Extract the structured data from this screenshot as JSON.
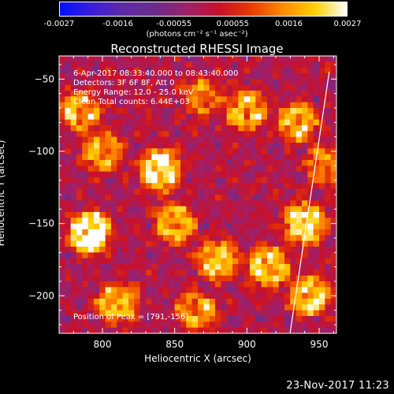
{
  "colorbar": {
    "ticks": [
      "-0.0027",
      "-0.0016",
      "-0.00055",
      "0.00055",
      "0.0016",
      "0.0027"
    ],
    "unit_label": "(photons cm⁻² s⁻¹ asec⁻²)",
    "colors": [
      "#0010ff",
      "#3a1ed8",
      "#5f2aa8",
      "#6a2c8a",
      "#a0206a",
      "#c8102a",
      "#e83a00",
      "#ff8a00",
      "#ffd000",
      "#ffffff"
    ]
  },
  "title": "Reconstructed RHESSI Image",
  "info_lines": [
    "6-Apr-2017 08:33:40.000 to 08:43:40.000",
    "Detectors: 3F 6F 8F, Att 0",
    "Energy Range: 12.0 - 25.0 keV",
    "Clean    Total counts: 6.44E+03"
  ],
  "peak_label": "Position of Peak = [791,-156]",
  "footer_date": "23-Nov-2017 11:23",
  "chart_data": {
    "type": "heatmap",
    "title": "Reconstructed RHESSI Image",
    "xlabel": "Heliocentric X (arcsec)",
    "ylabel": "Heliocentric Y (arcsec)",
    "xlim": [
      770,
      962
    ],
    "ylim": [
      -226,
      -34
    ],
    "xticks": [
      800,
      850,
      900,
      950
    ],
    "yticks": [
      -50,
      -100,
      -150,
      -200
    ],
    "zlim": [
      -0.0027,
      0.0027
    ],
    "zunit": "photons cm^-2 s^-1 asec^-2",
    "limb_line": {
      "x": [
        930,
        957
      ],
      "y": [
        -225,
        -45
      ]
    },
    "peak": {
      "x": 791,
      "y": -156
    },
    "sources": [
      {
        "x": 791,
        "y": -156,
        "value": 0.0027
      },
      {
        "x": 840,
        "y": -113,
        "value": 0.0024
      },
      {
        "x": 850,
        "y": -150,
        "value": 0.0017
      },
      {
        "x": 880,
        "y": -175,
        "value": 0.0018
      },
      {
        "x": 900,
        "y": -72,
        "value": 0.0016
      },
      {
        "x": 915,
        "y": -180,
        "value": 0.002
      },
      {
        "x": 940,
        "y": -150,
        "value": 0.0022
      },
      {
        "x": 943,
        "y": -200,
        "value": 0.0019
      },
      {
        "x": 935,
        "y": -80,
        "value": 0.0017
      },
      {
        "x": 785,
        "y": -72,
        "value": 0.0016
      },
      {
        "x": 800,
        "y": -100,
        "value": 0.0015
      },
      {
        "x": 810,
        "y": -205,
        "value": 0.0018
      },
      {
        "x": 865,
        "y": -210,
        "value": 0.0014
      },
      {
        "x": 955,
        "y": -110,
        "value": 0.0013
      },
      {
        "x": 870,
        "y": -62,
        "value": 0.0012
      }
    ]
  }
}
